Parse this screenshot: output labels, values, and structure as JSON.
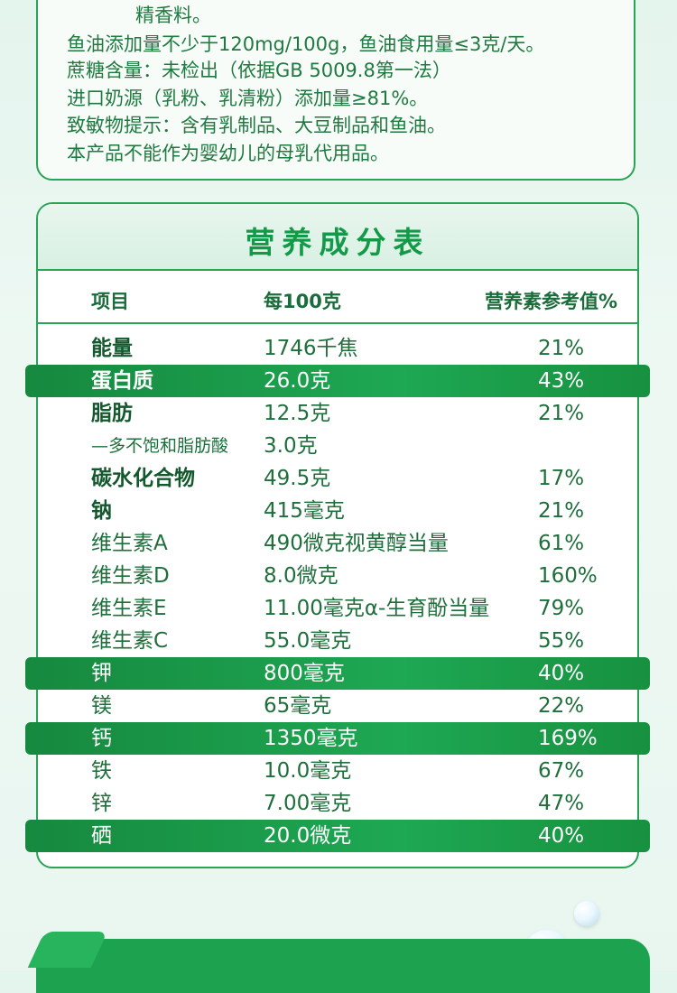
{
  "ingredients_lines": [
    "精香料。",
    "鱼油添加量不少于120mg/100g，鱼油食用量≤3克/天。",
    "蔗糖含量：未检出（依据GB 5009.8第一法）",
    "进口奶源（乳粉、乳清粉）添加量≥81%。",
    "致敏物提示：含有乳制品、大豆制品和鱼油。",
    "本产品不能作为婴幼儿的母乳代用品。"
  ],
  "table": {
    "title": "营养成分表",
    "headers": [
      "项目",
      "每100克",
      "营养素参考值%"
    ],
    "rows": [
      {
        "item": "能量",
        "amount": "1746千焦",
        "nrv": "21%",
        "bold": true,
        "highlight": false
      },
      {
        "item": "蛋白质",
        "amount": "26.0克",
        "nrv": "43%",
        "bold": true,
        "highlight": true
      },
      {
        "item": "脂肪",
        "amount": "12.5克",
        "nrv": "21%",
        "bold": true,
        "highlight": false
      },
      {
        "item": "—多不饱和脂肪酸",
        "amount": "3.0克",
        "nrv": "",
        "bold": false,
        "highlight": false,
        "sub": true
      },
      {
        "item": "碳水化合物",
        "amount": "49.5克",
        "nrv": "17%",
        "bold": true,
        "highlight": false
      },
      {
        "item": "钠",
        "amount": "415毫克",
        "nrv": "21%",
        "bold": true,
        "highlight": false
      },
      {
        "item": "维生素A",
        "amount": "490微克视黄醇当量",
        "nrv": "61%",
        "bold": false,
        "highlight": false
      },
      {
        "item": "维生素D",
        "amount": "8.0微克",
        "nrv": "160%",
        "bold": false,
        "highlight": false
      },
      {
        "item": "维生素E",
        "amount": "11.00毫克α-生育酚当量",
        "nrv": "79%",
        "bold": false,
        "highlight": false
      },
      {
        "item": "维生素C",
        "amount": "55.0毫克",
        "nrv": "55%",
        "bold": false,
        "highlight": false
      },
      {
        "item": "钾",
        "amount": "800毫克",
        "nrv": "40%",
        "bold": false,
        "highlight": true
      },
      {
        "item": "镁",
        "amount": "65毫克",
        "nrv": "22%",
        "bold": false,
        "highlight": false
      },
      {
        "item": "钙",
        "amount": "1350毫克",
        "nrv": "169%",
        "bold": false,
        "highlight": true
      },
      {
        "item": "铁",
        "amount": "10.0毫克",
        "nrv": "67%",
        "bold": false,
        "highlight": false
      },
      {
        "item": "锌",
        "amount": "7.00毫克",
        "nrv": "47%",
        "bold": false,
        "highlight": false
      },
      {
        "item": "硒",
        "amount": "20.0微克",
        "nrv": "40%",
        "bold": false,
        "highlight": true
      }
    ]
  },
  "colors": {
    "accent_green": "#1ea853",
    "text_green": "#1f6f3c",
    "border_green": "#2aa355"
  }
}
